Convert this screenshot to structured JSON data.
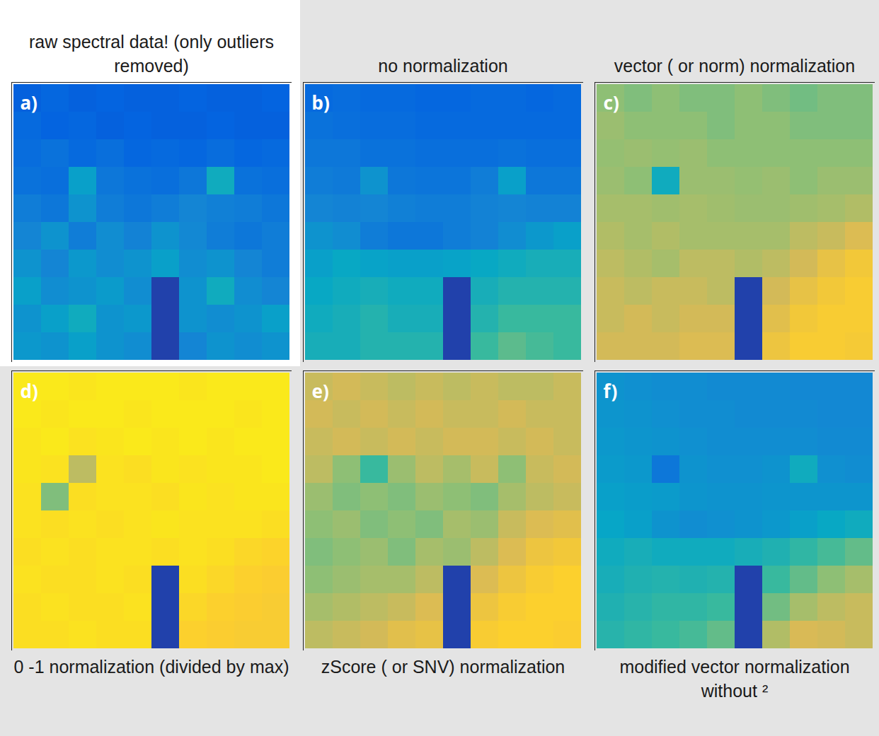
{
  "chart_data": [
    {
      "type": "heatmap",
      "title": "raw spectral data! (only outliers removed)",
      "annotations": [
        "a)"
      ],
      "tick_labels": false,
      "clim": [
        0,
        1
      ],
      "cells": [
        [
          0.12,
          0.14,
          0.12,
          0.13,
          0.12,
          0.12,
          0.13,
          0.12,
          0.12,
          0.13
        ],
        [
          0.15,
          0.13,
          0.14,
          0.12,
          0.13,
          0.12,
          0.12,
          0.13,
          0.12,
          0.12
        ],
        [
          0.16,
          0.18,
          0.15,
          0.17,
          0.14,
          0.15,
          0.14,
          0.16,
          0.14,
          0.15
        ],
        [
          0.18,
          0.17,
          0.35,
          0.2,
          0.18,
          0.17,
          0.2,
          0.4,
          0.18,
          0.17
        ],
        [
          0.22,
          0.2,
          0.3,
          0.22,
          0.2,
          0.22,
          0.25,
          0.23,
          0.22,
          0.2
        ],
        [
          0.25,
          0.3,
          0.22,
          0.28,
          0.24,
          0.3,
          0.26,
          0.22,
          0.2,
          0.22
        ],
        [
          0.3,
          0.25,
          0.32,
          0.28,
          0.3,
          0.35,
          0.28,
          0.3,
          0.25,
          0.22
        ],
        [
          0.35,
          0.28,
          0.3,
          0.33,
          0.28,
          0.05,
          0.3,
          0.4,
          0.28,
          0.25
        ],
        [
          0.3,
          0.35,
          0.4,
          0.3,
          0.32,
          0.05,
          0.3,
          0.28,
          0.3,
          0.35
        ],
        [
          0.32,
          0.3,
          0.35,
          0.3,
          0.28,
          0.05,
          0.25,
          0.3,
          0.28,
          0.3
        ]
      ]
    },
    {
      "type": "heatmap",
      "title": "no normalization",
      "annotations": [
        "b)"
      ],
      "tick_labels": false,
      "clim": [
        0,
        1
      ],
      "cells": [
        [
          0.15,
          0.16,
          0.15,
          0.15,
          0.14,
          0.14,
          0.15,
          0.15,
          0.14,
          0.15
        ],
        [
          0.18,
          0.17,
          0.16,
          0.16,
          0.15,
          0.15,
          0.15,
          0.15,
          0.15,
          0.15
        ],
        [
          0.2,
          0.2,
          0.18,
          0.18,
          0.17,
          0.17,
          0.17,
          0.18,
          0.17,
          0.17
        ],
        [
          0.22,
          0.21,
          0.3,
          0.2,
          0.19,
          0.19,
          0.22,
          0.35,
          0.2,
          0.2
        ],
        [
          0.25,
          0.24,
          0.25,
          0.23,
          0.22,
          0.22,
          0.24,
          0.25,
          0.24,
          0.24
        ],
        [
          0.3,
          0.28,
          0.22,
          0.2,
          0.2,
          0.22,
          0.24,
          0.28,
          0.32,
          0.35
        ],
        [
          0.35,
          0.38,
          0.36,
          0.35,
          0.35,
          0.36,
          0.38,
          0.4,
          0.42,
          0.42
        ],
        [
          0.38,
          0.4,
          0.42,
          0.4,
          0.4,
          0.05,
          0.42,
          0.45,
          0.45,
          0.45
        ],
        [
          0.4,
          0.42,
          0.45,
          0.42,
          0.42,
          0.05,
          0.45,
          0.5,
          0.5,
          0.5
        ],
        [
          0.42,
          0.42,
          0.45,
          0.45,
          0.45,
          0.05,
          0.5,
          0.55,
          0.52,
          0.5
        ]
      ]
    },
    {
      "type": "heatmap",
      "title": "vector ( or norm) normalization",
      "annotations": [
        "c)"
      ],
      "tick_labels": false,
      "clim": [
        0,
        1
      ],
      "cells": [
        [
          0.62,
          0.6,
          0.62,
          0.6,
          0.6,
          0.62,
          0.6,
          0.58,
          0.6,
          0.6
        ],
        [
          0.64,
          0.62,
          0.62,
          0.62,
          0.6,
          0.62,
          0.62,
          0.6,
          0.6,
          0.6
        ],
        [
          0.63,
          0.64,
          0.63,
          0.64,
          0.62,
          0.62,
          0.62,
          0.62,
          0.62,
          0.62
        ],
        [
          0.64,
          0.62,
          0.4,
          0.64,
          0.64,
          0.63,
          0.64,
          0.62,
          0.64,
          0.64
        ],
        [
          0.66,
          0.66,
          0.65,
          0.66,
          0.65,
          0.64,
          0.64,
          0.65,
          0.66,
          0.68
        ],
        [
          0.68,
          0.66,
          0.68,
          0.66,
          0.66,
          0.66,
          0.66,
          0.7,
          0.72,
          0.76
        ],
        [
          0.7,
          0.68,
          0.66,
          0.7,
          0.7,
          0.68,
          0.7,
          0.74,
          0.8,
          0.84
        ],
        [
          0.72,
          0.7,
          0.72,
          0.72,
          0.7,
          0.05,
          0.74,
          0.8,
          0.84,
          0.86
        ],
        [
          0.72,
          0.74,
          0.72,
          0.74,
          0.74,
          0.05,
          0.78,
          0.84,
          0.86,
          0.86
        ],
        [
          0.74,
          0.74,
          0.74,
          0.76,
          0.76,
          0.05,
          0.82,
          0.86,
          0.86,
          0.85
        ]
      ]
    },
    {
      "type": "heatmap",
      "title": "0 -1 normalization (divided by max)",
      "annotations": [
        "d)"
      ],
      "tick_labels": false,
      "clim": [
        0,
        1
      ],
      "cells": [
        [
          0.95,
          0.95,
          0.94,
          0.95,
          0.95,
          0.95,
          0.94,
          0.95,
          0.95,
          0.95
        ],
        [
          0.95,
          0.94,
          0.95,
          0.95,
          0.94,
          0.95,
          0.95,
          0.95,
          0.94,
          0.95
        ],
        [
          0.94,
          0.95,
          0.93,
          0.94,
          0.95,
          0.94,
          0.95,
          0.94,
          0.95,
          0.95
        ],
        [
          0.94,
          0.93,
          0.7,
          0.93,
          0.92,
          0.94,
          0.93,
          0.94,
          0.94,
          0.95
        ],
        [
          0.93,
          0.6,
          0.92,
          0.93,
          0.93,
          0.92,
          0.94,
          0.93,
          0.94,
          0.94
        ],
        [
          0.93,
          0.92,
          0.93,
          0.92,
          0.93,
          0.94,
          0.93,
          0.93,
          0.93,
          0.92
        ],
        [
          0.92,
          0.93,
          0.92,
          0.93,
          0.93,
          0.92,
          0.93,
          0.92,
          0.9,
          0.89
        ],
        [
          0.93,
          0.92,
          0.92,
          0.93,
          0.92,
          0.05,
          0.92,
          0.9,
          0.88,
          0.87
        ],
        [
          0.92,
          0.93,
          0.92,
          0.92,
          0.93,
          0.05,
          0.9,
          0.88,
          0.87,
          0.86
        ],
        [
          0.92,
          0.92,
          0.93,
          0.92,
          0.92,
          0.05,
          0.88,
          0.87,
          0.86,
          0.86
        ]
      ]
    },
    {
      "type": "heatmap",
      "title": "zScore ( or SNV) normalization",
      "annotations": [
        "e)"
      ],
      "tick_labels": false,
      "clim": [
        0,
        1
      ],
      "cells": [
        [
          0.72,
          0.74,
          0.72,
          0.7,
          0.72,
          0.7,
          0.72,
          0.7,
          0.7,
          0.72
        ],
        [
          0.74,
          0.72,
          0.74,
          0.72,
          0.74,
          0.72,
          0.72,
          0.74,
          0.72,
          0.72
        ],
        [
          0.72,
          0.74,
          0.72,
          0.74,
          0.72,
          0.74,
          0.74,
          0.72,
          0.74,
          0.72
        ],
        [
          0.7,
          0.62,
          0.5,
          0.64,
          0.7,
          0.66,
          0.72,
          0.62,
          0.72,
          0.74
        ],
        [
          0.64,
          0.6,
          0.62,
          0.6,
          0.64,
          0.62,
          0.6,
          0.66,
          0.7,
          0.72
        ],
        [
          0.62,
          0.64,
          0.6,
          0.62,
          0.6,
          0.66,
          0.64,
          0.72,
          0.76,
          0.78
        ],
        [
          0.6,
          0.62,
          0.64,
          0.6,
          0.66,
          0.64,
          0.7,
          0.76,
          0.82,
          0.84
        ],
        [
          0.62,
          0.64,
          0.66,
          0.66,
          0.7,
          0.05,
          0.76,
          0.82,
          0.86,
          0.88
        ],
        [
          0.66,
          0.68,
          0.7,
          0.72,
          0.76,
          0.05,
          0.82,
          0.86,
          0.88,
          0.88
        ],
        [
          0.7,
          0.72,
          0.74,
          0.78,
          0.8,
          0.05,
          0.86,
          0.88,
          0.88,
          0.87
        ]
      ]
    },
    {
      "type": "heatmap",
      "title": "modified vector normalization without ²",
      "annotations": [
        "f)"
      ],
      "tick_labels": false,
      "clim": [
        0,
        1
      ],
      "cells": [
        [
          0.3,
          0.29,
          0.28,
          0.28,
          0.27,
          0.27,
          0.27,
          0.26,
          0.26,
          0.26
        ],
        [
          0.31,
          0.3,
          0.29,
          0.28,
          0.28,
          0.27,
          0.27,
          0.27,
          0.26,
          0.26
        ],
        [
          0.32,
          0.31,
          0.3,
          0.29,
          0.28,
          0.28,
          0.28,
          0.28,
          0.27,
          0.27
        ],
        [
          0.33,
          0.32,
          0.2,
          0.3,
          0.29,
          0.29,
          0.3,
          0.4,
          0.29,
          0.28
        ],
        [
          0.35,
          0.34,
          0.33,
          0.31,
          0.3,
          0.3,
          0.31,
          0.31,
          0.31,
          0.31
        ],
        [
          0.37,
          0.35,
          0.3,
          0.28,
          0.29,
          0.3,
          0.32,
          0.35,
          0.38,
          0.4
        ],
        [
          0.4,
          0.42,
          0.4,
          0.4,
          0.4,
          0.42,
          0.44,
          0.48,
          0.52,
          0.56
        ],
        [
          0.42,
          0.44,
          0.45,
          0.44,
          0.45,
          0.05,
          0.5,
          0.56,
          0.62,
          0.66
        ],
        [
          0.44,
          0.46,
          0.48,
          0.48,
          0.5,
          0.05,
          0.58,
          0.66,
          0.7,
          0.72
        ],
        [
          0.46,
          0.48,
          0.5,
          0.52,
          0.56,
          0.05,
          0.68,
          0.75,
          0.74,
          0.72
        ]
      ]
    }
  ]
}
